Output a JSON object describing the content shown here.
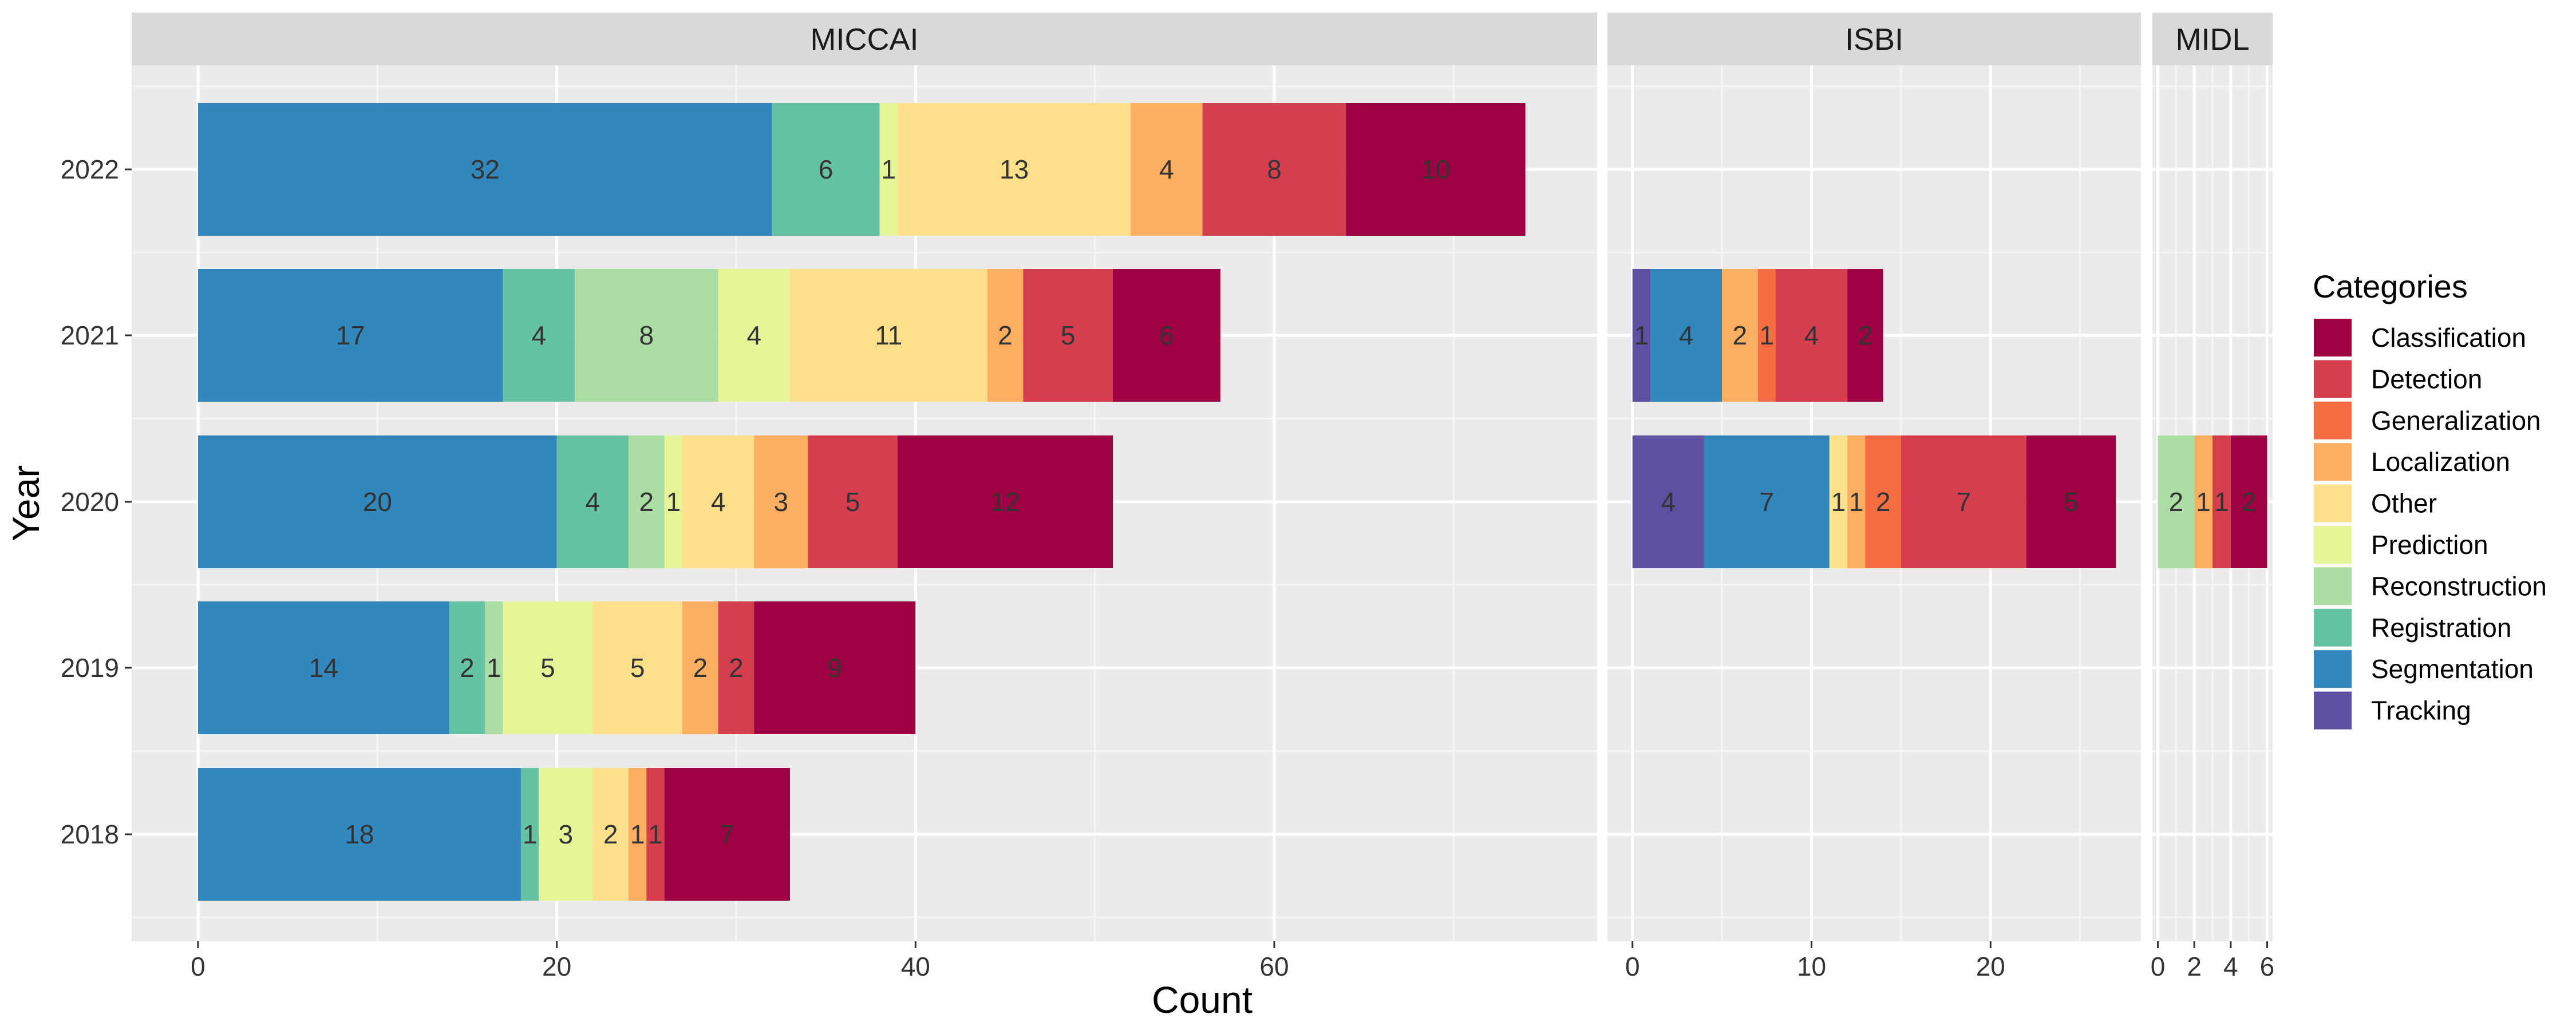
{
  "chart_data": {
    "type": "bar",
    "orientation": "horizontal",
    "stacked": true,
    "xlabel": "Count",
    "ylabel": "Year",
    "categories": [
      "2018",
      "2019",
      "2020",
      "2021",
      "2022"
    ],
    "legend": {
      "title": "Categories",
      "position": "right",
      "entries": [
        "Classification",
        "Detection",
        "Generalization",
        "Localization",
        "Other",
        "Prediction",
        "Reconstruction",
        "Registration",
        "Segmentation",
        "Tracking"
      ]
    },
    "colors": {
      "Classification": "#9E0142",
      "Detection": "#D53E4F",
      "Generalization": "#F46D43",
      "Localization": "#FDAE61",
      "Other": "#FEE08B",
      "Prediction": "#E6F598",
      "Reconstruction": "#ABDDA4",
      "Registration": "#66C2A5",
      "Segmentation": "#3288BD",
      "Tracking": "#5E4FA2"
    },
    "stack_order": [
      "Tracking",
      "Segmentation",
      "Registration",
      "Reconstruction",
      "Prediction",
      "Other",
      "Localization",
      "Generalization",
      "Detection",
      "Classification"
    ],
    "panel_background": "#EBEBEB",
    "grid": true,
    "panels": [
      {
        "name": "MICCAI",
        "xlim": [
          -3.7,
          78
        ],
        "xticks": [
          0,
          20,
          40,
          60
        ],
        "data": {
          "2018": {
            "Segmentation": 18,
            "Registration": 1,
            "Prediction": 3,
            "Other": 2,
            "Localization": 1,
            "Detection": 1,
            "Classification": 7
          },
          "2019": {
            "Segmentation": 14,
            "Registration": 2,
            "Reconstruction": 1,
            "Prediction": 5,
            "Other": 5,
            "Localization": 2,
            "Detection": 2,
            "Classification": 9
          },
          "2020": {
            "Segmentation": 20,
            "Registration": 4,
            "Reconstruction": 2,
            "Prediction": 1,
            "Other": 4,
            "Localization": 3,
            "Detection": 5,
            "Classification": 12
          },
          "2021": {
            "Segmentation": 17,
            "Registration": 4,
            "Reconstruction": 8,
            "Prediction": 4,
            "Other": 11,
            "Localization": 2,
            "Detection": 5,
            "Classification": 6
          },
          "2022": {
            "Segmentation": 32,
            "Registration": 6,
            "Prediction": 1,
            "Other": 13,
            "Localization": 4,
            "Detection": 8,
            "Classification": 10
          }
        }
      },
      {
        "name": "ISBI",
        "xlim": [
          -1.4,
          28.4
        ],
        "xticks": [
          0,
          10,
          20
        ],
        "data": {
          "2020": {
            "Tracking": 4,
            "Segmentation": 7,
            "Other": 1,
            "Localization": 1,
            "Generalization": 2,
            "Detection": 7,
            "Classification": 5
          },
          "2021": {
            "Tracking": 1,
            "Segmentation": 4,
            "Localization": 2,
            "Generalization": 1,
            "Detection": 4,
            "Classification": 2
          }
        }
      },
      {
        "name": "MIDL",
        "xlim": [
          -0.3,
          6.3
        ],
        "xticks": [
          0,
          2,
          4,
          6
        ],
        "data": {
          "2020": {
            "Reconstruction": 2,
            "Localization": 1,
            "Detection": 1,
            "Classification": 2
          }
        }
      }
    ]
  }
}
